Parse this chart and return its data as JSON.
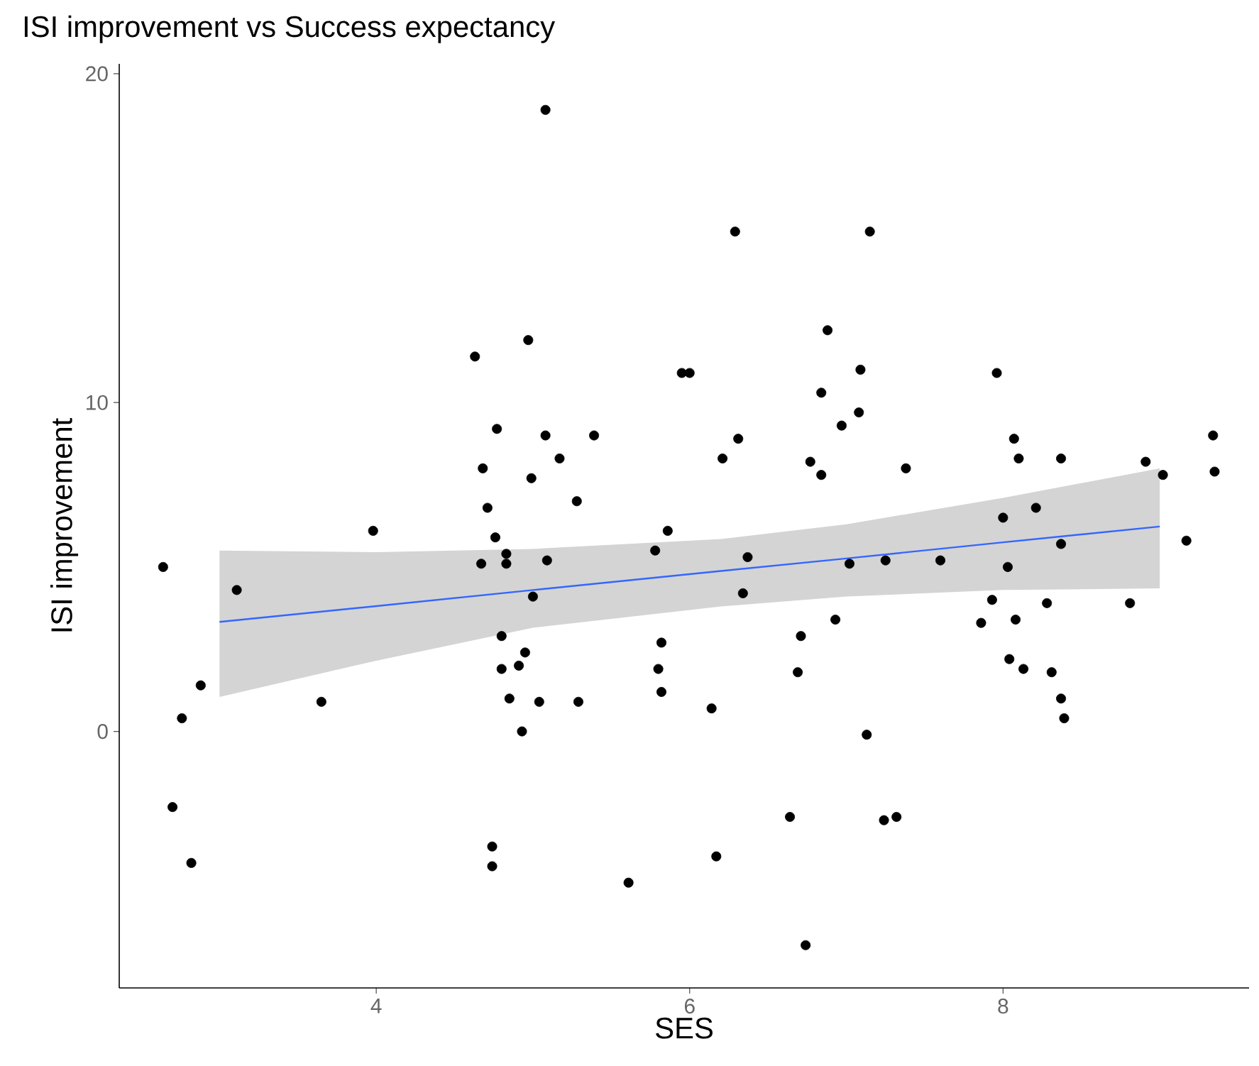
{
  "chart_data": {
    "type": "scatter",
    "title": "ISI improvement vs Success expectancy",
    "xlabel": "SES",
    "ylabel": "ISI improvement",
    "xlim": [
      2.36,
      9.57
    ],
    "ylim": [
      -7.8,
      20.3
    ],
    "xticks": [
      4,
      6,
      8
    ],
    "yticks": [
      0,
      10,
      20
    ],
    "grid": false,
    "series": [
      {
        "marker": "circle",
        "color": "#000000",
        "x": [
          4.63,
          4.97,
          4.77,
          4.68,
          4.99,
          5.08,
          6.29,
          7.15,
          6.88,
          5.95,
          6.0,
          7.09,
          6.84,
          7.08,
          6.97,
          5.08,
          5.39,
          5.17,
          6.31,
          6.21,
          6.77,
          6.84,
          7.38,
          7.96,
          8.07,
          8.1,
          8.37,
          8.91,
          9.02,
          9.34,
          9.35,
          4.71,
          4.76,
          3.98,
          2.64,
          4.67,
          4.83,
          4.83,
          3.11,
          5.0,
          4.8,
          4.95,
          4.91,
          4.8,
          2.88,
          4.85,
          2.76,
          3.65,
          4.93,
          2.7,
          2.82,
          4.74,
          4.74,
          5.28,
          5.86,
          5.09,
          5.78,
          6.37,
          6.34,
          7.02,
          7.25,
          7.6,
          5.82,
          6.93,
          6.71,
          5.8,
          6.69,
          5.04,
          5.29,
          5.82,
          6.14,
          7.13,
          6.64,
          7.24,
          7.32,
          6.17,
          5.61,
          6.74,
          8.0,
          8.21,
          8.03,
          8.37,
          9.17,
          7.93,
          8.28,
          8.81,
          7.86,
          8.08,
          8.04,
          8.13,
          8.31,
          8.37,
          8.39
        ],
        "values": [
          11.4,
          11.9,
          9.2,
          8.0,
          7.7,
          18.9,
          15.2,
          15.2,
          12.2,
          10.9,
          10.9,
          11.0,
          10.3,
          9.7,
          9.3,
          9.0,
          9.0,
          8.3,
          8.9,
          8.3,
          8.2,
          7.8,
          8.0,
          10.9,
          8.9,
          8.3,
          8.3,
          8.2,
          7.8,
          9.0,
          7.9,
          6.8,
          5.9,
          6.1,
          5.0,
          5.1,
          5.4,
          5.1,
          4.3,
          4.1,
          2.9,
          2.4,
          2.0,
          1.9,
          1.4,
          1.0,
          0.4,
          0.9,
          0.0,
          -2.3,
          -4.0,
          -3.5,
          -4.1,
          7.0,
          6.1,
          5.2,
          5.5,
          5.3,
          4.2,
          5.1,
          5.2,
          5.2,
          2.7,
          3.4,
          2.9,
          1.9,
          1.8,
          0.9,
          0.9,
          1.2,
          0.7,
          -0.1,
          -2.6,
          -2.7,
          -2.6,
          -3.8,
          -4.6,
          -6.5,
          6.5,
          6.8,
          5.0,
          5.7,
          5.8,
          4.0,
          3.9,
          3.9,
          3.3,
          3.4,
          2.2,
          1.9,
          1.8,
          1.0,
          0.4
        ]
      },
      {
        "type": "line",
        "marker": "none",
        "line_style": "solid",
        "color": "#3366ff",
        "x": [
          3.0,
          4.0,
          5.0,
          6.2,
          7.0,
          8.0,
          9.0
        ],
        "values": [
          3.33,
          3.81,
          4.3,
          4.88,
          5.26,
          5.75,
          6.23
        ],
        "lower": [
          1.05,
          2.15,
          3.15,
          3.8,
          4.1,
          4.3,
          4.35
        ],
        "upper": [
          5.5,
          5.45,
          5.55,
          5.85,
          6.3,
          7.1,
          8.0
        ]
      }
    ]
  }
}
